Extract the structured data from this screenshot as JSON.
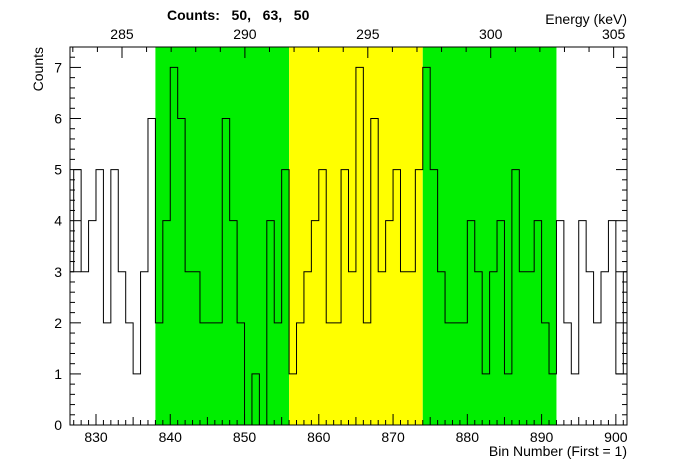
{
  "chart_data": {
    "type": "step",
    "xlabel": "Bin Number (First = 1)",
    "ylabel": "Counts",
    "top_axis_label": "Energy (keV)",
    "counts_text": "Counts:   50,   63,   50",
    "xlim": [
      826.5,
      901.5
    ],
    "ylim": [
      0,
      7.4
    ],
    "x_ticks": [
      830,
      840,
      850,
      860,
      870,
      880,
      890,
      900
    ],
    "y_ticks": [
      0,
      1,
      2,
      3,
      4,
      5,
      6,
      7
    ],
    "energy_ticks": [
      285,
      290,
      295,
      300,
      305
    ],
    "energy_calibration": {
      "bin_at_285": 833.5,
      "bins_per_5keV": 16.55
    },
    "regions": [
      {
        "name": "left-background",
        "x_start": 838,
        "x_end": 856,
        "color": "#00ee00"
      },
      {
        "name": "peak",
        "x_start": 856,
        "x_end": 874,
        "color": "#ffff00"
      },
      {
        "name": "right-background",
        "x_start": 874,
        "x_end": 892,
        "color": "#00ee00"
      }
    ],
    "bin_start": 826,
    "values": [
      3,
      5,
      3,
      4,
      5,
      2,
      5,
      3,
      2,
      1,
      3,
      6,
      2,
      4,
      7,
      6,
      3,
      3,
      2,
      2,
      2,
      6,
      4,
      2,
      0,
      1,
      0,
      4,
      2,
      5,
      1,
      2,
      3,
      4,
      5,
      2,
      2,
      5,
      3,
      7,
      2,
      6,
      3,
      4,
      5,
      3,
      3,
      5,
      7,
      5,
      3,
      2,
      2,
      2,
      4,
      3,
      1,
      3,
      4,
      1,
      5,
      3,
      3,
      4,
      2,
      1,
      4,
      2,
      1,
      4,
      3,
      2,
      3,
      4,
      1,
      3
    ],
    "y_minor_per_major": 5
  }
}
